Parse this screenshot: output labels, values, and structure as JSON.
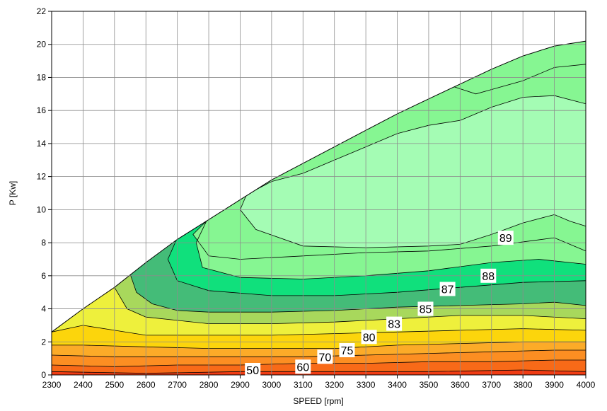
{
  "chart_data": {
    "type": "contour",
    "title": "",
    "xlabel": "SPEED [rpm]",
    "ylabel": "P [Kw]",
    "xlim": [
      2300,
      4000
    ],
    "ylim": [
      0,
      22
    ],
    "x_ticks": [
      2300,
      2400,
      2500,
      2600,
      2700,
      2800,
      2900,
      3000,
      3100,
      3200,
      3300,
      3400,
      3500,
      3600,
      3700,
      3800,
      3900,
      4000
    ],
    "y_ticks": [
      0,
      2,
      4,
      6,
      8,
      10,
      12,
      14,
      16,
      18,
      20,
      22
    ],
    "grid": true,
    "max_power_envelope": [
      [
        2300,
        2.6
      ],
      [
        2400,
        4.0
      ],
      [
        2500,
        5.3
      ],
      [
        2600,
        6.8
      ],
      [
        2700,
        8.2
      ],
      [
        2800,
        9.4
      ],
      [
        2900,
        10.6
      ],
      [
        3000,
        11.8
      ],
      [
        3100,
        12.8
      ],
      [
        3200,
        13.8
      ],
      [
        3300,
        14.8
      ],
      [
        3400,
        15.8
      ],
      [
        3500,
        16.7
      ],
      [
        3600,
        17.6
      ],
      [
        3700,
        18.5
      ],
      [
        3800,
        19.3
      ],
      [
        3900,
        19.9
      ],
      [
        4000,
        20.2
      ]
    ],
    "levels": [
      {
        "label": "50",
        "color": "#f03c14",
        "boundary": [
          [
            2300,
            0.2
          ],
          [
            2600,
            0.1
          ],
          [
            2900,
            0.2
          ],
          [
            3200,
            0.2
          ],
          [
            3500,
            0.2
          ],
          [
            3800,
            0.3
          ],
          [
            4000,
            0.2
          ]
        ]
      },
      {
        "label": "60",
        "color": "#f86a18",
        "boundary": [
          [
            2300,
            0.6
          ],
          [
            2500,
            0.5
          ],
          [
            2700,
            0.6
          ],
          [
            2900,
            0.6
          ],
          [
            3100,
            0.7
          ],
          [
            3300,
            0.7
          ],
          [
            3500,
            0.8
          ],
          [
            3700,
            0.8
          ],
          [
            3900,
            0.9
          ],
          [
            4000,
            0.9
          ]
        ]
      },
      {
        "label": "70",
        "color": "#fc8e22",
        "boundary": [
          [
            2300,
            1.2
          ],
          [
            2500,
            1.1
          ],
          [
            2700,
            1.1
          ],
          [
            2900,
            1.1
          ],
          [
            3100,
            1.1
          ],
          [
            3300,
            1.2
          ],
          [
            3500,
            1.3
          ],
          [
            3700,
            1.4
          ],
          [
            3900,
            1.5
          ],
          [
            4000,
            1.5
          ]
        ]
      },
      {
        "label": "75",
        "color": "#fcab28",
        "boundary": [
          [
            2300,
            1.8
          ],
          [
            2400,
            1.8
          ],
          [
            2600,
            1.7
          ],
          [
            2800,
            1.6
          ],
          [
            3000,
            1.6
          ],
          [
            3200,
            1.6
          ],
          [
            3400,
            1.8
          ],
          [
            3600,
            1.9
          ],
          [
            3800,
            2.0
          ],
          [
            4000,
            2.0
          ]
        ]
      },
      {
        "label": "80",
        "color": "#fcd50c",
        "boundary": [
          [
            2300,
            2.6
          ],
          [
            2400,
            3.0
          ],
          [
            2500,
            2.7
          ],
          [
            2600,
            2.4
          ],
          [
            2800,
            2.4
          ],
          [
            3000,
            2.4
          ],
          [
            3200,
            2.5
          ],
          [
            3400,
            2.6
          ],
          [
            3600,
            2.7
          ],
          [
            3800,
            2.8
          ],
          [
            4000,
            2.7
          ]
        ]
      },
      {
        "label": "83",
        "color": "#eef03c",
        "boundary": [
          [
            2500,
            5.3
          ],
          [
            2540,
            4.0
          ],
          [
            2600,
            3.5
          ],
          [
            2700,
            3.3
          ],
          [
            2800,
            3.1
          ],
          [
            3000,
            3.1
          ],
          [
            3200,
            3.2
          ],
          [
            3400,
            3.4
          ],
          [
            3600,
            3.6
          ],
          [
            3800,
            3.6
          ],
          [
            4000,
            3.4
          ]
        ]
      },
      {
        "label": "85",
        "color": "#a8d85c",
        "boundary": [
          [
            2550,
            6.1
          ],
          [
            2570,
            5.0
          ],
          [
            2620,
            4.3
          ],
          [
            2700,
            3.9
          ],
          [
            2800,
            3.8
          ],
          [
            3000,
            3.8
          ],
          [
            3200,
            3.9
          ],
          [
            3400,
            4.1
          ],
          [
            3600,
            4.2
          ],
          [
            3800,
            4.3
          ],
          [
            3900,
            4.4
          ],
          [
            4000,
            4.2
          ]
        ]
      },
      {
        "label": "87",
        "color": "#44bc78",
        "boundary": [
          [
            2700,
            8.3
          ],
          [
            2670,
            7.0
          ],
          [
            2700,
            5.7
          ],
          [
            2800,
            5.1
          ],
          [
            3000,
            4.8
          ],
          [
            3200,
            4.8
          ],
          [
            3400,
            5.0
          ],
          [
            3600,
            5.3
          ],
          [
            3800,
            5.6
          ],
          [
            4000,
            5.7
          ]
        ]
      },
      {
        "label": "88",
        "color": "#10e07c",
        "boundary": [
          [
            2850,
            10.2
          ],
          [
            2800,
            9.6
          ],
          [
            2760,
            8.0
          ],
          [
            2780,
            6.5
          ],
          [
            2900,
            5.9
          ],
          [
            3100,
            5.8
          ],
          [
            3300,
            6.0
          ],
          [
            3500,
            6.3
          ],
          [
            3700,
            6.8
          ],
          [
            3850,
            7.0
          ],
          [
            4000,
            6.7
          ]
        ]
      },
      {
        "label": "89",
        "color": "#86f692",
        "boundary": [
          [
            3570,
            17.5
          ],
          [
            3650,
            17.0
          ],
          [
            3800,
            17.8
          ],
          [
            3900,
            18.6
          ],
          [
            4000,
            18.8
          ],
          [
            4000,
            7.5
          ],
          [
            3900,
            8.3
          ],
          [
            3700,
            7.8
          ],
          [
            3500,
            7.5
          ],
          [
            3300,
            7.4
          ],
          [
            3100,
            7.2
          ],
          [
            2900,
            7.0
          ],
          [
            2800,
            7.2
          ],
          [
            2750,
            8.5
          ],
          [
            2850,
            10.4
          ],
          [
            2950,
            11.5
          ],
          [
            3000,
            11.9
          ]
        ]
      },
      {
        "label": "",
        "color": "#a4fcb4",
        "boundary": [
          [
            3000,
            11.7
          ],
          [
            3100,
            12.2
          ],
          [
            3200,
            13.0
          ],
          [
            3300,
            13.8
          ],
          [
            3400,
            14.6
          ],
          [
            3500,
            15.1
          ],
          [
            3600,
            15.4
          ],
          [
            3700,
            16.2
          ],
          [
            3800,
            16.8
          ],
          [
            3900,
            16.9
          ],
          [
            4000,
            16.4
          ],
          [
            4000,
            9.0
          ],
          [
            3950,
            9.3
          ],
          [
            3900,
            9.7
          ],
          [
            3800,
            9.2
          ],
          [
            3700,
            8.5
          ],
          [
            3600,
            7.9
          ],
          [
            3500,
            7.8
          ],
          [
            3300,
            7.7
          ],
          [
            3100,
            7.8
          ],
          [
            2950,
            8.8
          ],
          [
            2900,
            10.0
          ],
          [
            2920,
            10.9
          ]
        ]
      }
    ],
    "contour_labels": [
      {
        "text": "50",
        "x": 2940,
        "y": 0.3
      },
      {
        "text": "60",
        "x": 3100,
        "y": 0.5
      },
      {
        "text": "70",
        "x": 3170,
        "y": 1.1
      },
      {
        "text": "75",
        "x": 3240,
        "y": 1.5
      },
      {
        "text": "80",
        "x": 3310,
        "y": 2.3
      },
      {
        "text": "83",
        "x": 3390,
        "y": 3.1
      },
      {
        "text": "85",
        "x": 3490,
        "y": 4.0
      },
      {
        "text": "87",
        "x": 3560,
        "y": 5.2
      },
      {
        "text": "88",
        "x": 3690,
        "y": 6.0
      },
      {
        "text": "89",
        "x": 3745,
        "y": 8.3
      }
    ]
  },
  "colors": {
    "background": "#ffffff",
    "grid": "#8c8c8c",
    "axis": "#000000",
    "label_box": "#ffffff"
  }
}
